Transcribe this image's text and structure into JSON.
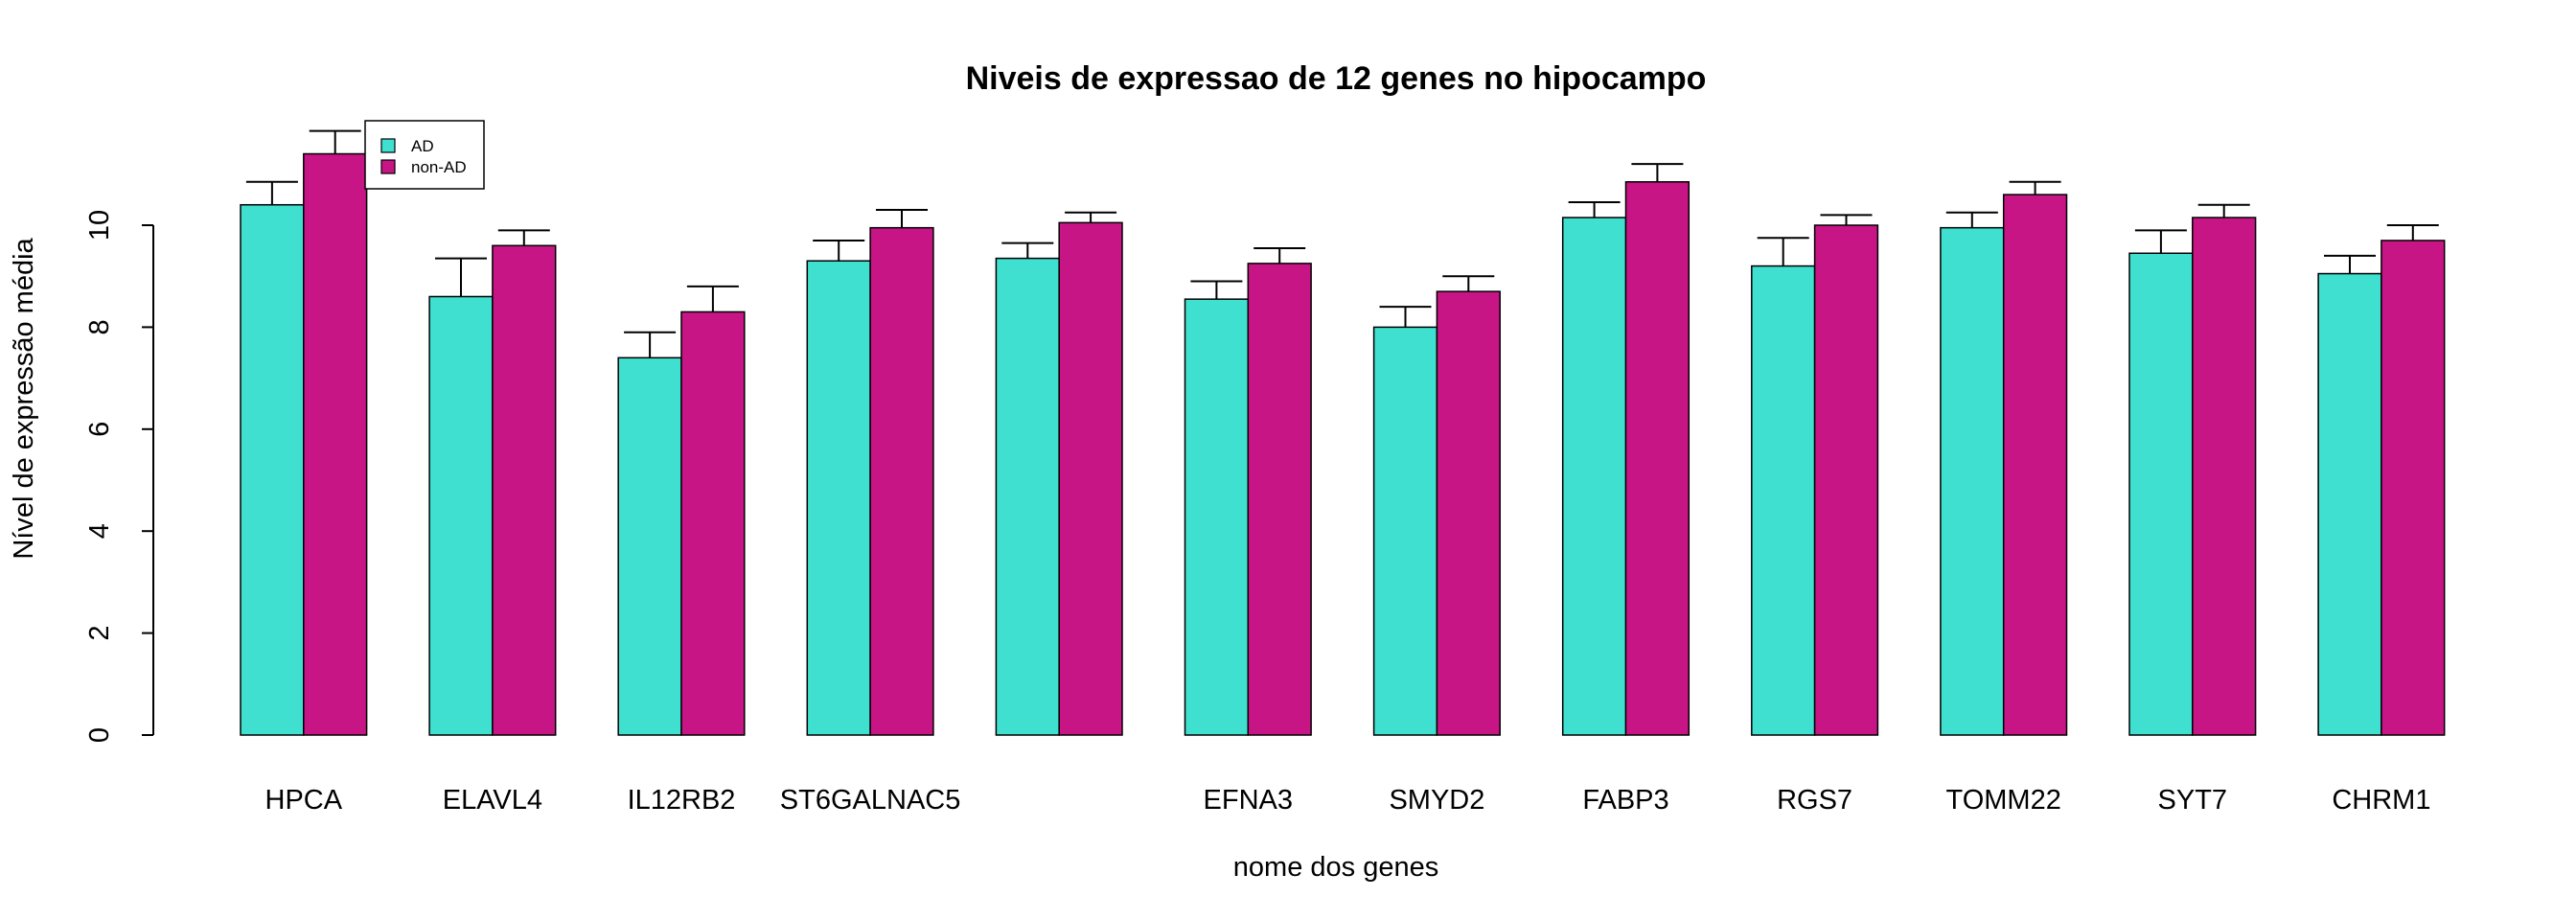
{
  "chart_data": {
    "type": "bar",
    "title": "Niveis de expressao de 12 genes no hipocampo",
    "xlabel": "nome dos genes",
    "ylabel": "Nível de expressão média",
    "ylim": [
      0,
      11.5
    ],
    "yticks": [
      0,
      2,
      4,
      6,
      8,
      10
    ],
    "categories": [
      "HPCA",
      "ELAVL4",
      "IL12RB2",
      "ST6GALNAC5",
      "",
      "EFNA3",
      "SMYD2",
      "FABP3",
      "RGS7",
      "TOMM22",
      "SYT7",
      "CHRM1"
    ],
    "series": [
      {
        "name": "AD",
        "color": "#40E0D0",
        "values": [
          10.4,
          8.6,
          7.4,
          9.3,
          9.35,
          8.55,
          8.0,
          10.15,
          9.2,
          9.95,
          9.45,
          9.05
        ],
        "errors": [
          0.45,
          0.75,
          0.5,
          0.4,
          0.3,
          0.35,
          0.4,
          0.3,
          0.55,
          0.3,
          0.45,
          0.35
        ]
      },
      {
        "name": "non-AD",
        "color": "#C71585",
        "values": [
          11.4,
          9.6,
          8.3,
          9.95,
          10.05,
          9.25,
          8.7,
          10.85,
          10.0,
          10.6,
          10.15,
          9.7
        ],
        "errors": [
          0.45,
          0.3,
          0.5,
          0.35,
          0.2,
          0.3,
          0.3,
          0.35,
          0.2,
          0.25,
          0.25,
          0.3
        ]
      }
    ],
    "legend": {
      "position": "top-left",
      "entries": [
        "AD",
        "non-AD"
      ]
    },
    "grid": false
  }
}
